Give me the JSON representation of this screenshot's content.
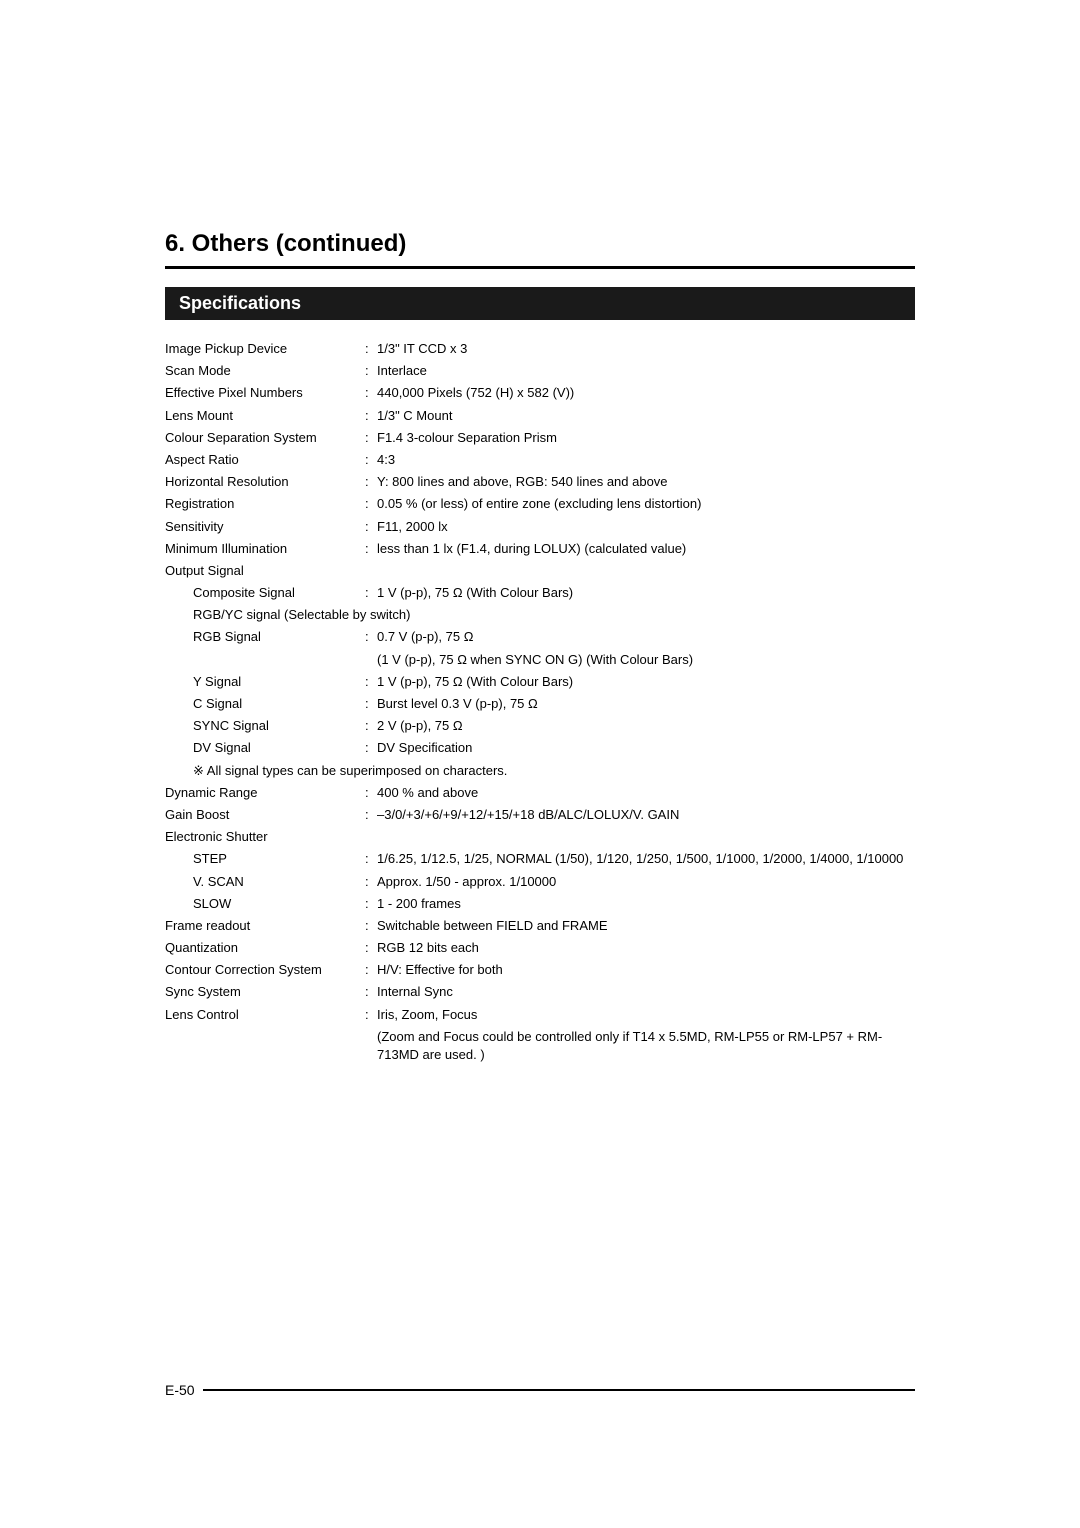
{
  "header": {
    "section_title": "6.  Others (continued)",
    "subsection_title": "Specifications"
  },
  "specs": {
    "rows": [
      {
        "label": "Image Pickup Device",
        "value": "1/3\" IT CCD x 3",
        "indent": 0,
        "colon": true
      },
      {
        "label": "Scan Mode",
        "value": "Interlace",
        "indent": 0,
        "colon": true
      },
      {
        "label": "Effective Pixel Numbers",
        "value": "440,000 Pixels (752 (H) x 582 (V))",
        "indent": 0,
        "colon": true
      },
      {
        "label": "Lens Mount",
        "value": "1/3\" C Mount",
        "indent": 0,
        "colon": true
      },
      {
        "label": "Colour Separation System",
        "value": "F1.4 3-colour Separation Prism",
        "indent": 0,
        "colon": true
      },
      {
        "label": "Aspect Ratio",
        "value": "4:3",
        "indent": 0,
        "colon": true
      },
      {
        "label": "Horizontal Resolution",
        "value": "Y: 800 lines and above, RGB: 540 lines and above",
        "indent": 0,
        "colon": true
      },
      {
        "label": "Registration",
        "value": "0.05 % (or less) of entire zone (excluding lens distortion)",
        "indent": 0,
        "colon": true
      },
      {
        "label": "Sensitivity",
        "value": "F11, 2000 lx",
        "indent": 0,
        "colon": true
      },
      {
        "label": "Minimum Illumination",
        "value": "less than 1 lx (F1.4, during LOLUX) (calculated value)",
        "indent": 0,
        "colon": true
      },
      {
        "label": "Output Signal",
        "value": "",
        "indent": 0,
        "colon": false
      },
      {
        "label": "Composite Signal",
        "value": "1 V (p-p), 75 Ω (With Colour Bars)",
        "indent": 1,
        "colon": true
      },
      {
        "label": "RGB/YC signal (Selectable by switch)",
        "value": "",
        "indent": 1,
        "colon": false,
        "full": true
      },
      {
        "label": "RGB Signal",
        "value": "0.7 V (p-p), 75 Ω",
        "indent": 1,
        "colon": true
      },
      {
        "label": "",
        "value": "(1 V (p-p), 75 Ω when SYNC ON G) (With Colour Bars)",
        "indent": 0,
        "colon": false,
        "extra": true
      },
      {
        "label": "Y Signal",
        "value": "1 V (p-p), 75 Ω (With Colour Bars)",
        "indent": 1,
        "colon": true
      },
      {
        "label": "C Signal",
        "value": "Burst level 0.3 V (p-p), 75 Ω",
        "indent": 1,
        "colon": true
      },
      {
        "label": "SYNC Signal",
        "value": "2 V (p-p), 75 Ω",
        "indent": 1,
        "colon": true
      },
      {
        "label": "DV Signal",
        "value": "DV Specification",
        "indent": 1,
        "colon": true
      },
      {
        "label": "※ All signal types can be superimposed on characters.",
        "value": "",
        "indent": 1,
        "colon": false,
        "full": true
      },
      {
        "label": "Dynamic Range",
        "value": "400 % and above",
        "indent": 0,
        "colon": true
      },
      {
        "label": "Gain Boost",
        "value": "–3/0/+3/+6/+9/+12/+15/+18 dB/ALC/LOLUX/V. GAIN",
        "indent": 0,
        "colon": true
      },
      {
        "label": "Electronic Shutter",
        "value": "",
        "indent": 0,
        "colon": false
      },
      {
        "label": "STEP",
        "value": "1/6.25, 1/12.5, 1/25, NORMAL (1/50), 1/120, 1/250, 1/500, 1/1000, 1/2000, 1/4000, 1/10000",
        "indent": 1,
        "colon": true
      },
      {
        "label": "V. SCAN",
        "value": "Approx. 1/50 - approx. 1/10000",
        "indent": 1,
        "colon": true
      },
      {
        "label": "SLOW",
        "value": "1 - 200 frames",
        "indent": 1,
        "colon": true
      },
      {
        "label": "Frame readout",
        "value": "Switchable between FIELD and FRAME",
        "indent": 0,
        "colon": true
      },
      {
        "label": "Quantization",
        "value": "RGB 12 bits each",
        "indent": 0,
        "colon": true
      },
      {
        "label": "Contour Correction System",
        "value": "H/V: Effective for both",
        "indent": 0,
        "colon": true
      },
      {
        "label": "Sync System",
        "value": "Internal Sync",
        "indent": 0,
        "colon": true
      },
      {
        "label": "Lens Control",
        "value": "Iris, Zoom, Focus",
        "indent": 0,
        "colon": true
      },
      {
        "label": "",
        "value": "(Zoom and Focus could be controlled only if T14 x 5.5MD, RM-LP55 or RM-LP57 + RM-713MD are used. )",
        "indent": 0,
        "colon": false,
        "extra": true
      }
    ]
  },
  "footer": {
    "page_number": "E-50"
  }
}
